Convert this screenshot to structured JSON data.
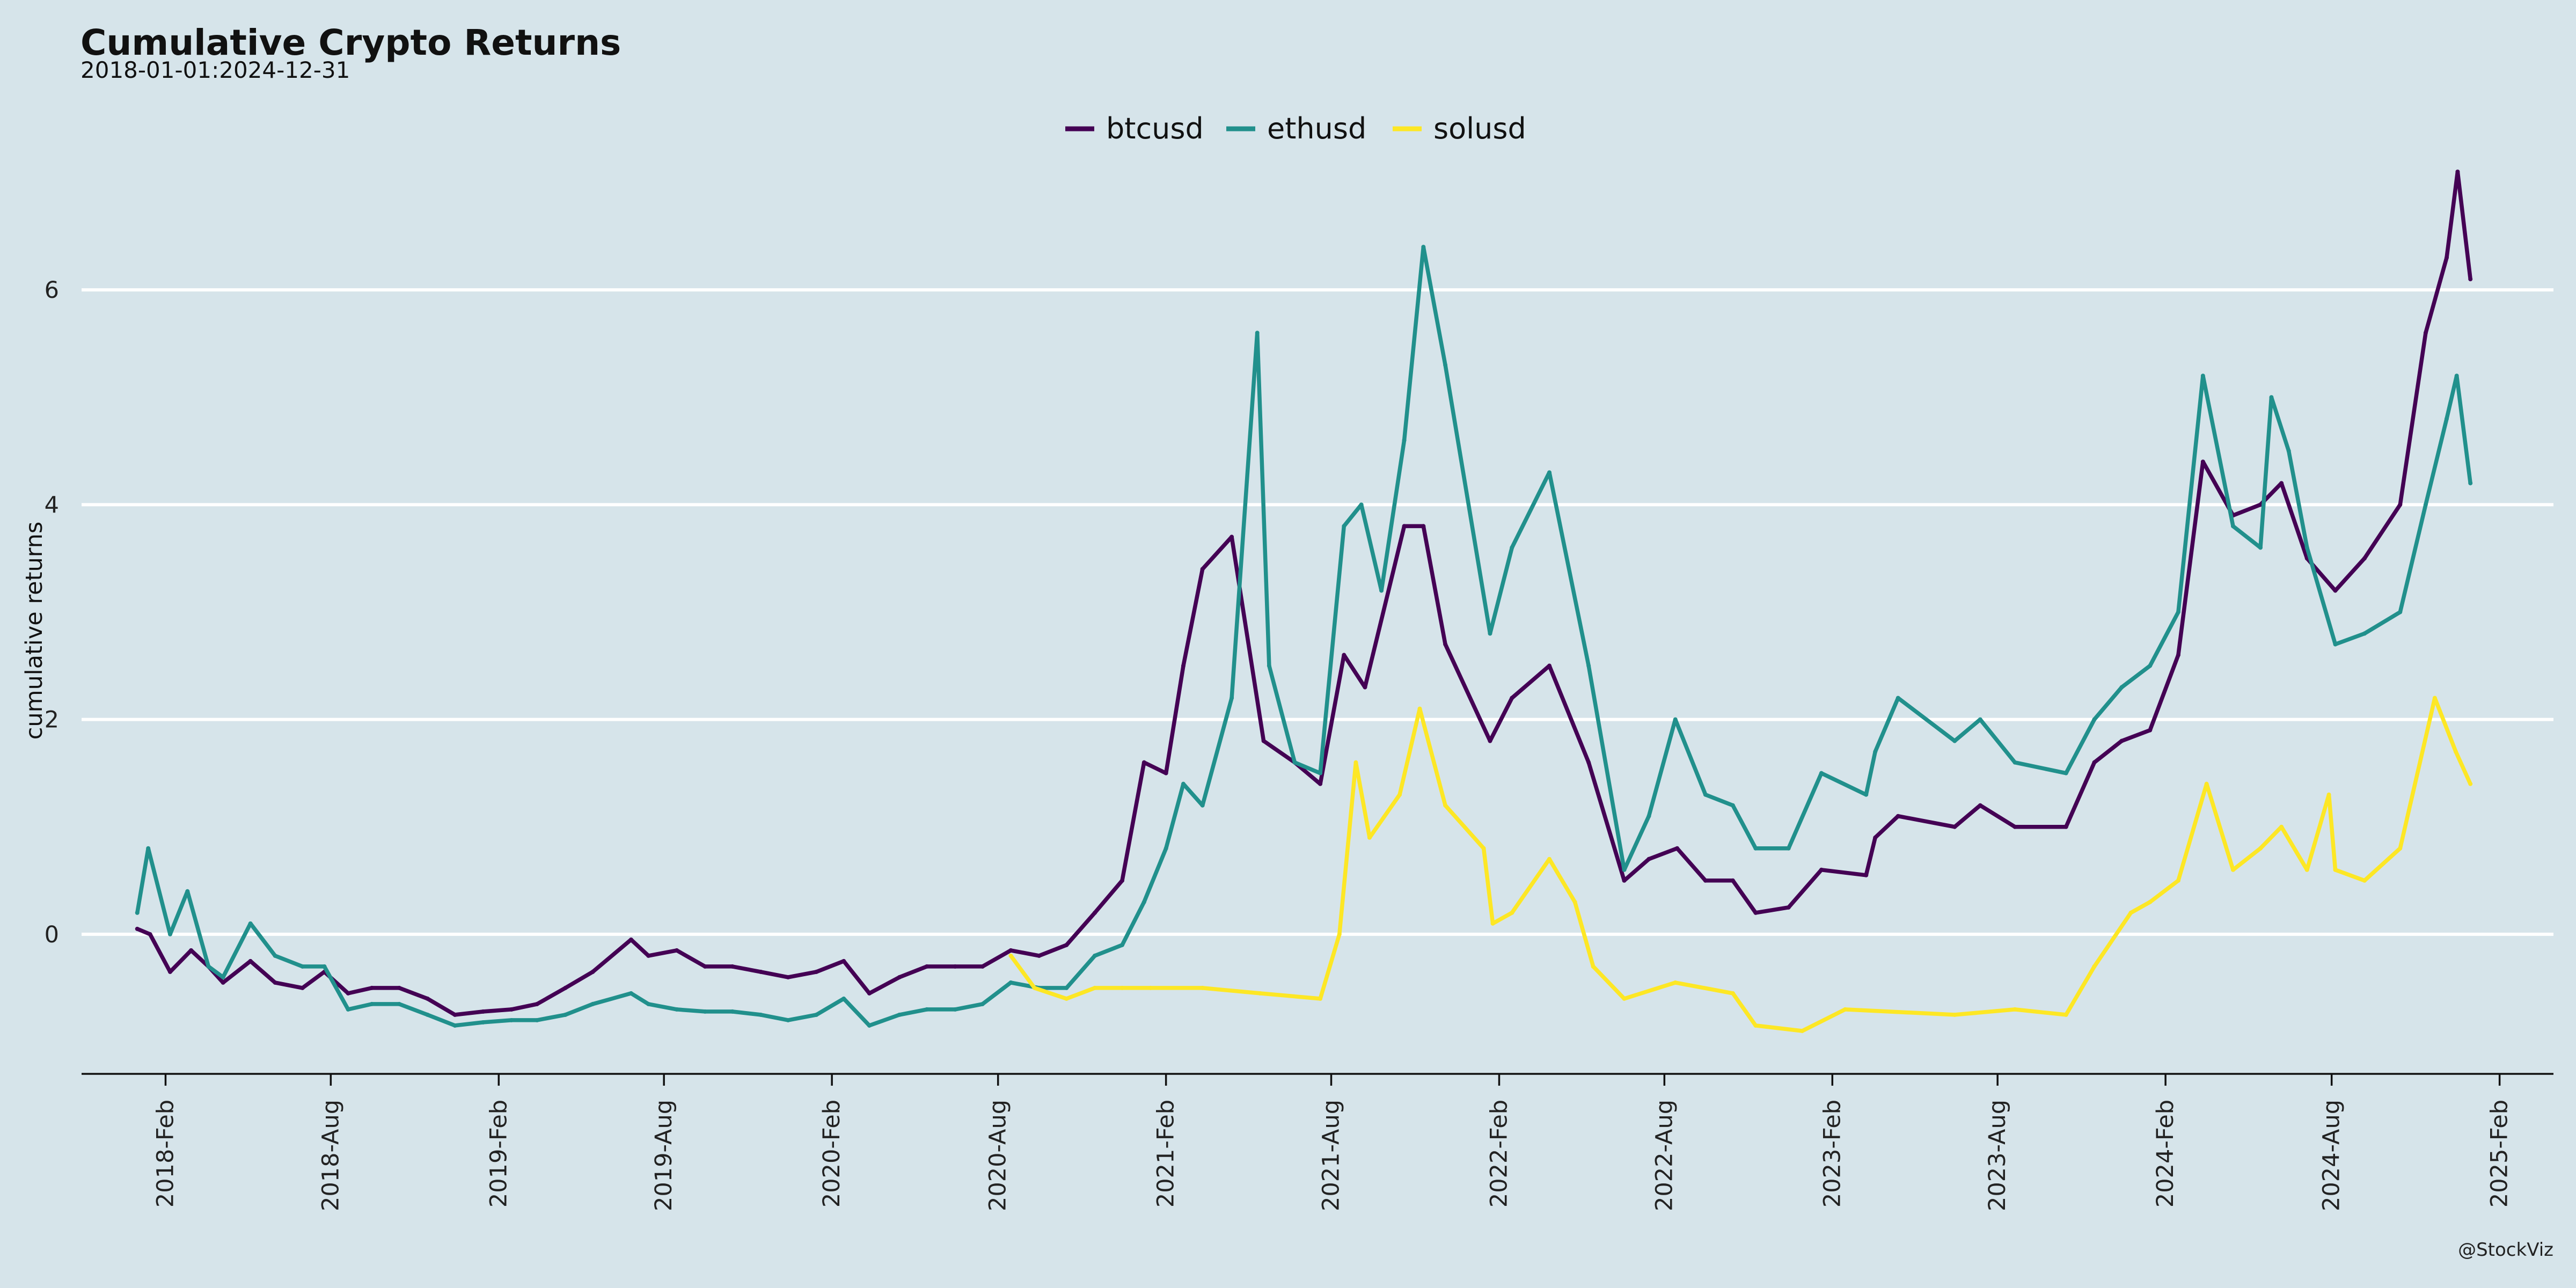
{
  "chart_data": {
    "type": "line",
    "title": "Cumulative Crypto Returns",
    "subtitle": "2018-01-01:2024-12-31",
    "xlabel": "",
    "ylabel": "cumulative returns",
    "caption": "@StockViz",
    "legend_position": "top",
    "grid": "horizontal",
    "ylim": [
      -1.3,
      7.2
    ],
    "xlim": [
      "2017-11-01",
      "2025-04-01"
    ],
    "y_ticks": [
      0,
      2,
      4,
      6
    ],
    "x_ticks": [
      {
        "date": "2018-02-01",
        "label": "2018-Feb"
      },
      {
        "date": "2018-08-01",
        "label": "2018-Aug"
      },
      {
        "date": "2019-02-01",
        "label": "2019-Feb"
      },
      {
        "date": "2019-08-01",
        "label": "2019-Aug"
      },
      {
        "date": "2020-02-01",
        "label": "2020-Feb"
      },
      {
        "date": "2020-08-01",
        "label": "2020-Aug"
      },
      {
        "date": "2021-02-01",
        "label": "2021-Feb"
      },
      {
        "date": "2021-08-01",
        "label": "2021-Aug"
      },
      {
        "date": "2022-02-01",
        "label": "2022-Feb"
      },
      {
        "date": "2022-08-01",
        "label": "2022-Aug"
      },
      {
        "date": "2023-02-01",
        "label": "2023-Feb"
      },
      {
        "date": "2023-08-01",
        "label": "2023-Aug"
      },
      {
        "date": "2024-02-01",
        "label": "2024-Feb"
      },
      {
        "date": "2024-08-01",
        "label": "2024-Aug"
      },
      {
        "date": "2025-02-01",
        "label": "2025-Feb"
      }
    ],
    "series": [
      {
        "name": "btcusd",
        "color": "#440154",
        "points": [
          [
            "2018-01-01",
            0.05
          ],
          [
            "2018-01-15",
            0.0
          ],
          [
            "2018-02-06",
            -0.35
          ],
          [
            "2018-03-01",
            -0.15
          ],
          [
            "2018-03-20",
            -0.3
          ],
          [
            "2018-04-05",
            -0.45
          ],
          [
            "2018-05-05",
            -0.25
          ],
          [
            "2018-06-01",
            -0.45
          ],
          [
            "2018-07-01",
            -0.5
          ],
          [
            "2018-07-25",
            -0.35
          ],
          [
            "2018-08-20",
            -0.55
          ],
          [
            "2018-09-15",
            -0.5
          ],
          [
            "2018-10-15",
            -0.5
          ],
          [
            "2018-11-15",
            -0.6
          ],
          [
            "2018-12-15",
            -0.75
          ],
          [
            "2019-01-15",
            -0.72
          ],
          [
            "2019-02-15",
            -0.7
          ],
          [
            "2019-03-15",
            -0.65
          ],
          [
            "2019-04-15",
            -0.5
          ],
          [
            "2019-05-15",
            -0.35
          ],
          [
            "2019-06-26",
            -0.05
          ],
          [
            "2019-07-15",
            -0.2
          ],
          [
            "2019-08-15",
            -0.15
          ],
          [
            "2019-09-15",
            -0.3
          ],
          [
            "2019-10-15",
            -0.3
          ],
          [
            "2019-11-15",
            -0.35
          ],
          [
            "2019-12-15",
            -0.4
          ],
          [
            "2020-01-15",
            -0.35
          ],
          [
            "2020-02-14",
            -0.25
          ],
          [
            "2020-03-13",
            -0.55
          ],
          [
            "2020-04-15",
            -0.4
          ],
          [
            "2020-05-15",
            -0.3
          ],
          [
            "2020-06-15",
            -0.3
          ],
          [
            "2020-07-15",
            -0.3
          ],
          [
            "2020-08-15",
            -0.15
          ],
          [
            "2020-09-15",
            -0.2
          ],
          [
            "2020-10-15",
            -0.1
          ],
          [
            "2020-11-15",
            0.2
          ],
          [
            "2020-12-15",
            0.5
          ],
          [
            "2021-01-08",
            1.6
          ],
          [
            "2021-02-01",
            1.5
          ],
          [
            "2021-02-20",
            2.5
          ],
          [
            "2021-03-13",
            3.4
          ],
          [
            "2021-04-14",
            3.7
          ],
          [
            "2021-05-19",
            1.8
          ],
          [
            "2021-06-22",
            1.6
          ],
          [
            "2021-07-20",
            1.4
          ],
          [
            "2021-08-15",
            2.6
          ],
          [
            "2021-09-07",
            2.3
          ],
          [
            "2021-10-20",
            3.8
          ],
          [
            "2021-11-10",
            3.8
          ],
          [
            "2021-12-04",
            2.7
          ],
          [
            "2022-01-22",
            1.8
          ],
          [
            "2022-02-15",
            2.2
          ],
          [
            "2022-03-28",
            2.5
          ],
          [
            "2022-05-10",
            1.6
          ],
          [
            "2022-06-18",
            0.5
          ],
          [
            "2022-07-15",
            0.7
          ],
          [
            "2022-08-15",
            0.8
          ],
          [
            "2022-09-15",
            0.5
          ],
          [
            "2022-10-15",
            0.5
          ],
          [
            "2022-11-09",
            0.2
          ],
          [
            "2022-12-15",
            0.25
          ],
          [
            "2023-01-20",
            0.6
          ],
          [
            "2023-03-10",
            0.55
          ],
          [
            "2023-03-20",
            0.9
          ],
          [
            "2023-04-14",
            1.1
          ],
          [
            "2023-06-15",
            1.0
          ],
          [
            "2023-07-13",
            1.2
          ],
          [
            "2023-08-20",
            1.0
          ],
          [
            "2023-10-15",
            1.0
          ],
          [
            "2023-11-15",
            1.6
          ],
          [
            "2023-12-15",
            1.8
          ],
          [
            "2024-01-15",
            1.9
          ],
          [
            "2024-02-15",
            2.6
          ],
          [
            "2024-03-13",
            4.4
          ],
          [
            "2024-04-15",
            3.9
          ],
          [
            "2024-05-15",
            4.0
          ],
          [
            "2024-06-07",
            4.2
          ],
          [
            "2024-07-05",
            3.5
          ],
          [
            "2024-08-05",
            3.2
          ],
          [
            "2024-09-06",
            3.5
          ],
          [
            "2024-10-15",
            4.0
          ],
          [
            "2024-11-12",
            5.6
          ],
          [
            "2024-12-05",
            6.3
          ],
          [
            "2024-12-17",
            7.1
          ],
          [
            "2024-12-31",
            6.1
          ]
        ]
      },
      {
        "name": "ethusd",
        "color": "#21908c",
        "points": [
          [
            "2018-01-01",
            0.2
          ],
          [
            "2018-01-13",
            0.8
          ],
          [
            "2018-02-06",
            0.0
          ],
          [
            "2018-02-25",
            0.4
          ],
          [
            "2018-03-20",
            -0.3
          ],
          [
            "2018-04-05",
            -0.4
          ],
          [
            "2018-05-05",
            0.1
          ],
          [
            "2018-06-01",
            -0.2
          ],
          [
            "2018-07-01",
            -0.3
          ],
          [
            "2018-07-25",
            -0.3
          ],
          [
            "2018-08-20",
            -0.7
          ],
          [
            "2018-09-15",
            -0.65
          ],
          [
            "2018-10-15",
            -0.65
          ],
          [
            "2018-11-15",
            -0.75
          ],
          [
            "2018-12-15",
            -0.85
          ],
          [
            "2019-01-15",
            -0.82
          ],
          [
            "2019-02-15",
            -0.8
          ],
          [
            "2019-03-15",
            -0.8
          ],
          [
            "2019-04-15",
            -0.75
          ],
          [
            "2019-05-15",
            -0.65
          ],
          [
            "2019-06-26",
            -0.55
          ],
          [
            "2019-07-15",
            -0.65
          ],
          [
            "2019-08-15",
            -0.7
          ],
          [
            "2019-09-15",
            -0.72
          ],
          [
            "2019-10-15",
            -0.72
          ],
          [
            "2019-11-15",
            -0.75
          ],
          [
            "2019-12-15",
            -0.8
          ],
          [
            "2020-01-15",
            -0.75
          ],
          [
            "2020-02-14",
            -0.6
          ],
          [
            "2020-03-13",
            -0.85
          ],
          [
            "2020-04-15",
            -0.75
          ],
          [
            "2020-05-15",
            -0.7
          ],
          [
            "2020-06-15",
            -0.7
          ],
          [
            "2020-07-15",
            -0.65
          ],
          [
            "2020-08-15",
            -0.45
          ],
          [
            "2020-09-15",
            -0.5
          ],
          [
            "2020-10-15",
            -0.5
          ],
          [
            "2020-11-15",
            -0.2
          ],
          [
            "2020-12-15",
            -0.1
          ],
          [
            "2021-01-08",
            0.3
          ],
          [
            "2021-02-01",
            0.8
          ],
          [
            "2021-02-20",
            1.4
          ],
          [
            "2021-03-13",
            1.2
          ],
          [
            "2021-04-14",
            2.2
          ],
          [
            "2021-05-12",
            5.6
          ],
          [
            "2021-05-25",
            2.5
          ],
          [
            "2021-06-22",
            1.6
          ],
          [
            "2021-07-20",
            1.5
          ],
          [
            "2021-08-15",
            3.8
          ],
          [
            "2021-09-03",
            4.0
          ],
          [
            "2021-09-25",
            3.2
          ],
          [
            "2021-10-20",
            4.6
          ],
          [
            "2021-11-10",
            6.4
          ],
          [
            "2021-12-04",
            5.3
          ],
          [
            "2022-01-22",
            2.8
          ],
          [
            "2022-02-15",
            3.6
          ],
          [
            "2022-03-28",
            4.3
          ],
          [
            "2022-05-10",
            2.5
          ],
          [
            "2022-06-18",
            0.6
          ],
          [
            "2022-07-15",
            1.1
          ],
          [
            "2022-08-13",
            2.0
          ],
          [
            "2022-09-15",
            1.3
          ],
          [
            "2022-10-15",
            1.2
          ],
          [
            "2022-11-09",
            0.8
          ],
          [
            "2022-12-15",
            0.8
          ],
          [
            "2023-01-20",
            1.5
          ],
          [
            "2023-03-10",
            1.3
          ],
          [
            "2023-03-20",
            1.7
          ],
          [
            "2023-04-14",
            2.2
          ],
          [
            "2023-06-15",
            1.8
          ],
          [
            "2023-07-13",
            2.0
          ],
          [
            "2023-08-20",
            1.6
          ],
          [
            "2023-10-15",
            1.5
          ],
          [
            "2023-11-15",
            2.0
          ],
          [
            "2023-12-15",
            2.3
          ],
          [
            "2024-01-15",
            2.5
          ],
          [
            "2024-02-15",
            3.0
          ],
          [
            "2024-03-13",
            5.2
          ],
          [
            "2024-04-15",
            3.8
          ],
          [
            "2024-05-15",
            3.6
          ],
          [
            "2024-05-27",
            5.0
          ],
          [
            "2024-06-15",
            4.5
          ],
          [
            "2024-07-05",
            3.6
          ],
          [
            "2024-08-05",
            2.7
          ],
          [
            "2024-09-06",
            2.8
          ],
          [
            "2024-10-15",
            3.0
          ],
          [
            "2024-11-12",
            4.0
          ],
          [
            "2024-12-05",
            4.8
          ],
          [
            "2024-12-16",
            5.2
          ],
          [
            "2024-12-31",
            4.2
          ]
        ]
      },
      {
        "name": "solusd",
        "color": "#fde725",
        "points": [
          [
            "2020-08-15",
            -0.2
          ],
          [
            "2020-09-10",
            -0.5
          ],
          [
            "2020-10-15",
            -0.6
          ],
          [
            "2020-11-15",
            -0.5
          ],
          [
            "2020-12-15",
            -0.5
          ],
          [
            "2021-01-15",
            -0.5
          ],
          [
            "2021-03-13",
            -0.5
          ],
          [
            "2021-05-15",
            -0.55
          ],
          [
            "2021-07-20",
            -0.6
          ],
          [
            "2021-08-10",
            0.0
          ],
          [
            "2021-08-28",
            1.6
          ],
          [
            "2021-09-12",
            0.9
          ],
          [
            "2021-10-15",
            1.3
          ],
          [
            "2021-11-06",
            2.1
          ],
          [
            "2021-12-04",
            1.2
          ],
          [
            "2022-01-15",
            0.8
          ],
          [
            "2022-01-25",
            0.1
          ],
          [
            "2022-02-15",
            0.2
          ],
          [
            "2022-03-28",
            0.7
          ],
          [
            "2022-04-25",
            0.3
          ],
          [
            "2022-05-15",
            -0.3
          ],
          [
            "2022-06-18",
            -0.6
          ],
          [
            "2022-08-13",
            -0.45
          ],
          [
            "2022-10-15",
            -0.55
          ],
          [
            "2022-11-09",
            -0.85
          ],
          [
            "2022-12-30",
            -0.9
          ],
          [
            "2023-02-15",
            -0.7
          ],
          [
            "2023-06-15",
            -0.75
          ],
          [
            "2023-08-20",
            -0.7
          ],
          [
            "2023-10-15",
            -0.75
          ],
          [
            "2023-11-15",
            -0.3
          ],
          [
            "2023-12-25",
            0.2
          ],
          [
            "2024-01-15",
            0.3
          ],
          [
            "2024-02-15",
            0.5
          ],
          [
            "2024-03-17",
            1.4
          ],
          [
            "2024-04-15",
            0.6
          ],
          [
            "2024-05-15",
            0.8
          ],
          [
            "2024-06-07",
            1.0
          ],
          [
            "2024-07-05",
            0.6
          ],
          [
            "2024-07-29",
            1.3
          ],
          [
            "2024-08-05",
            0.6
          ],
          [
            "2024-09-06",
            0.5
          ],
          [
            "2024-10-15",
            0.8
          ],
          [
            "2024-11-22",
            2.2
          ],
          [
            "2024-12-15",
            1.7
          ],
          [
            "2024-12-31",
            1.4
          ]
        ]
      }
    ]
  }
}
